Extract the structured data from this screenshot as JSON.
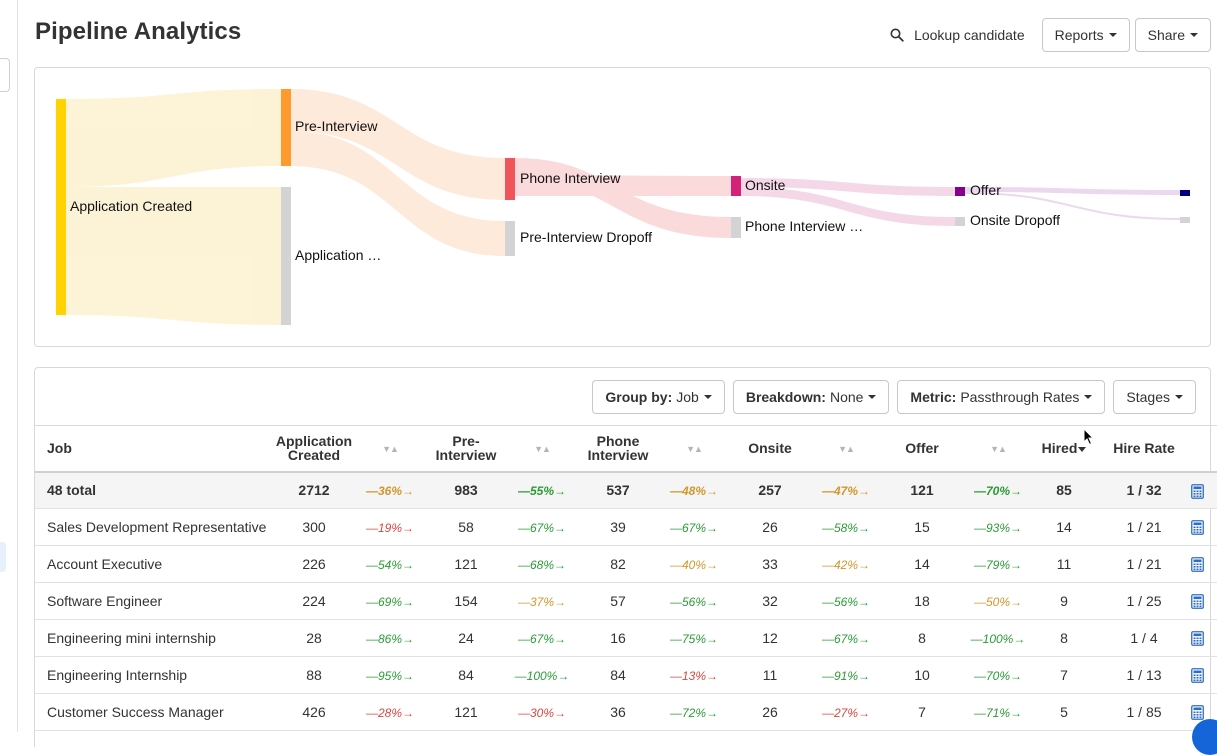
{
  "page": {
    "title": "Pipeline Analytics"
  },
  "header": {
    "lookup_label": "Lookup candidate",
    "reports_label": "Reports",
    "share_label": "Share"
  },
  "sankey": {
    "labels": {
      "application_created": "Application Created",
      "pre_interview": "Pre-Interview",
      "application_dropoff": "Application …",
      "phone_interview": "Phone Interview",
      "pre_interview_dropoff": "Pre-Interview Dropoff",
      "onsite": "Onsite",
      "phone_interview_dropoff": "Phone Interview …",
      "offer": "Offer",
      "onsite_dropoff": "Onsite Dropoff"
    },
    "colors": {
      "application_created": "#ffd200",
      "pre_interview": "#ff9a2e",
      "dropoff": "#d3d3d3",
      "phone_interview": "#f0555b",
      "onsite": "#d4227a",
      "offer": "#84008e",
      "hired": "#000080"
    }
  },
  "filters": {
    "group_by_key": "Group by:",
    "group_by_value": "Job",
    "breakdown_key": "Breakdown:",
    "breakdown_value": "None",
    "metric_key": "Metric:",
    "metric_value": "Passthrough Rates",
    "stages_label": "Stages"
  },
  "table": {
    "headers": {
      "job": "Job",
      "application_created_1": "Application",
      "application_created_2": "Created",
      "pre_interview": "Pre-Interview",
      "phone_interview_1": "Phone",
      "phone_interview_2": "Interview",
      "onsite": "Onsite",
      "offer": "Offer",
      "hired": "Hired",
      "hire_rate": "Hire Rate"
    },
    "total": {
      "job": "48 total",
      "application_created": "2712",
      "r1": "36%",
      "pre_interview": "983",
      "r2": "55%",
      "phone_interview": "537",
      "r3": "48%",
      "onsite": "257",
      "r4": "47%",
      "offer": "121",
      "r5": "70%",
      "hired": "85",
      "hire_rate": "1 / 32"
    },
    "rows": [
      {
        "job": "Sales Development Representative",
        "application_created": "300",
        "r1": "19%",
        "pre_interview": "58",
        "r2": "67%",
        "phone_interview": "39",
        "r3": "67%",
        "onsite": "26",
        "r4": "58%",
        "offer": "15",
        "r5": "93%",
        "hired": "14",
        "hire_rate": "1 / 21"
      },
      {
        "job": "Account Executive",
        "application_created": "226",
        "r1": "54%",
        "pre_interview": "121",
        "r2": "68%",
        "phone_interview": "82",
        "r3": "40%",
        "onsite": "33",
        "r4": "42%",
        "offer": "14",
        "r5": "79%",
        "hired": "11",
        "hire_rate": "1 / 21"
      },
      {
        "job": "Software Engineer",
        "application_created": "224",
        "r1": "69%",
        "pre_interview": "154",
        "r2": "37%",
        "phone_interview": "57",
        "r3": "56%",
        "onsite": "32",
        "r4": "56%",
        "offer": "18",
        "r5": "50%",
        "hired": "9",
        "hire_rate": "1 / 25"
      },
      {
        "job": "Engineering mini internship",
        "application_created": "28",
        "r1": "86%",
        "pre_interview": "24",
        "r2": "67%",
        "phone_interview": "16",
        "r3": "75%",
        "onsite": "12",
        "r4": "67%",
        "offer": "8",
        "r5": "100%",
        "hired": "8",
        "hire_rate": "1 / 4"
      },
      {
        "job": "Engineering Internship",
        "application_created": "88",
        "r1": "95%",
        "pre_interview": "84",
        "r2": "100%",
        "phone_interview": "84",
        "r3": "13%",
        "onsite": "11",
        "r4": "91%",
        "offer": "10",
        "r5": "70%",
        "hired": "7",
        "hire_rate": "1 / 13"
      },
      {
        "job": "Customer Success Manager",
        "application_created": "426",
        "r1": "28%",
        "pre_interview": "121",
        "r2": "30%",
        "phone_interview": "36",
        "r3": "72%",
        "onsite": "26",
        "r4": "27%",
        "offer": "7",
        "r5": "71%",
        "hired": "5",
        "hire_rate": "1 / 85"
      }
    ],
    "rate_colors": {
      "red": "#d9473f",
      "orange": "#d2962b",
      "green": "#2b9b36"
    },
    "icons": {
      "calculator": "calculator-icon"
    }
  }
}
